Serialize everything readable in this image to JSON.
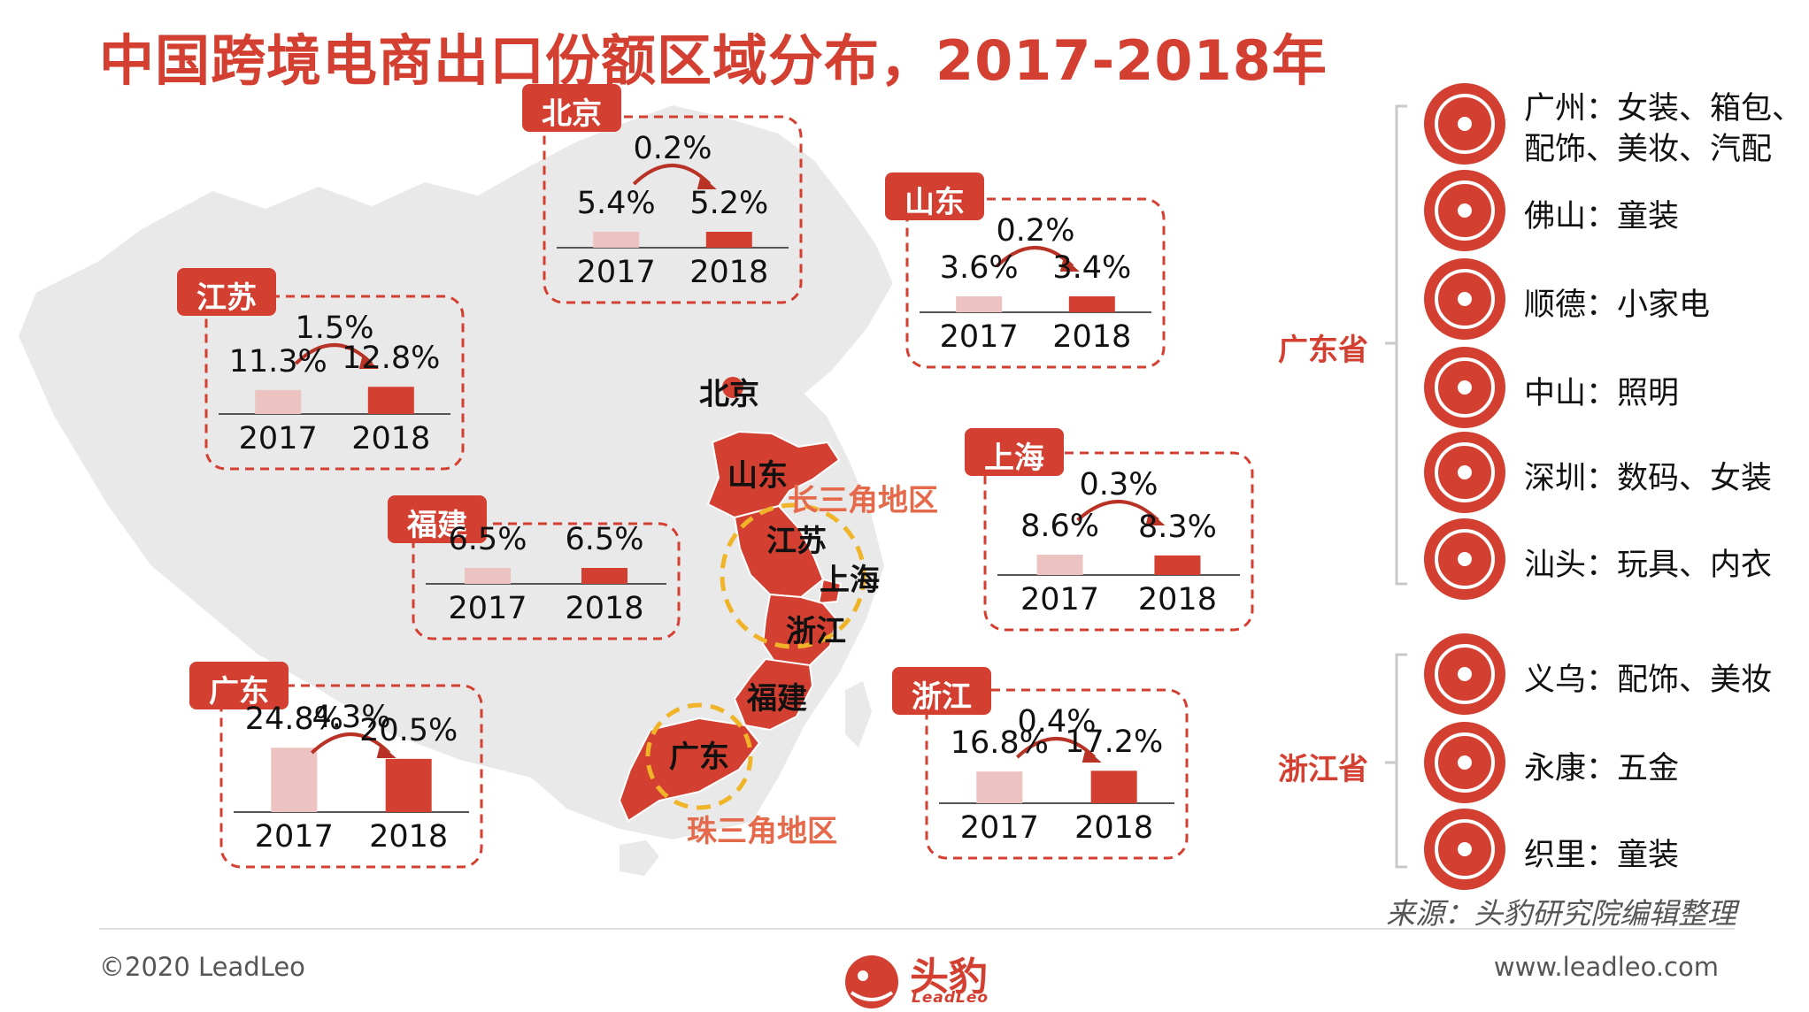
{
  "title": "中国跨境电商出口份额区域分布，2017-2018年",
  "chart_data": {
    "type": "bar",
    "categories": [
      "2017",
      "2018"
    ],
    "ylim": [
      0,
      30
    ],
    "series": [
      {
        "name": "北京",
        "values": [
          5.4,
          5.2
        ],
        "change": "0.2%",
        "value_labels": [
          "5.4%",
          "5.2%"
        ]
      },
      {
        "name": "山东",
        "values": [
          3.6,
          3.4
        ],
        "change": "0.2%",
        "value_labels": [
          "3.6%",
          "3.4%"
        ]
      },
      {
        "name": "江苏",
        "values": [
          11.3,
          12.8
        ],
        "change": "1.5%",
        "value_labels": [
          "11.3%",
          "12.8%"
        ]
      },
      {
        "name": "上海",
        "values": [
          8.6,
          8.3
        ],
        "change": "0.3%",
        "value_labels": [
          "8.6%",
          "8.3%"
        ]
      },
      {
        "name": "福建",
        "values": [
          6.5,
          6.5
        ],
        "change": "",
        "value_labels": [
          "6.5%",
          "6.5%"
        ]
      },
      {
        "name": "浙江",
        "values": [
          16.8,
          17.2
        ],
        "change": "0.4%",
        "value_labels": [
          "16.8%",
          "17.2%"
        ]
      },
      {
        "name": "广东",
        "values": [
          24.8,
          20.5
        ],
        "change": "4.3%",
        "value_labels": [
          "24.8%",
          "20.5%"
        ]
      }
    ],
    "colors": {
      "y2017": "#ecc3c0",
      "y2018": "#d33f31"
    }
  },
  "map_labels": {
    "beijing": "北京",
    "shandong": "山东",
    "jiangsu": "江苏",
    "shanghai": "上海",
    "zhejiang": "浙江",
    "fujian": "福建",
    "guangdong": "广东",
    "yangtze": "长三角地区",
    "pearl": "珠三角地区"
  },
  "legend": {
    "guangdong_province": "广东省",
    "zhejiang_province": "浙江省",
    "guangdong_cities": [
      {
        "icon": "dress-icon",
        "lines": [
          "广州：女装、箱包、",
          "配饰、美妆、汽配"
        ]
      },
      {
        "icon": "shirt-icon",
        "lines": [
          "佛山：童装"
        ]
      },
      {
        "icon": "hair-dryer-icon",
        "lines": [
          "顺德：小家电"
        ]
      },
      {
        "icon": "light-bulb-icon",
        "lines": [
          "中山：照明"
        ]
      },
      {
        "icon": "camera-icon",
        "lines": [
          "深圳：数码、女装"
        ]
      },
      {
        "icon": "rocking-horse-icon",
        "lines": [
          "汕头：玩具、内衣"
        ]
      }
    ],
    "zhejiang_cities": [
      {
        "icon": "watch-icon",
        "lines": [
          "义乌：配饰、美妆"
        ]
      },
      {
        "icon": "pliers-icon",
        "lines": [
          "永康：五金"
        ]
      },
      {
        "icon": "shirt-icon",
        "lines": [
          "织里：童装"
        ]
      }
    ]
  },
  "footer": {
    "source": "来源：头豹研究院编辑整理",
    "copyright": "©2020 LeadLeo",
    "website": "www.leadleo.com",
    "brand": "头豹",
    "brand_sub": "LeadLeo"
  },
  "accent": "#d33f31"
}
